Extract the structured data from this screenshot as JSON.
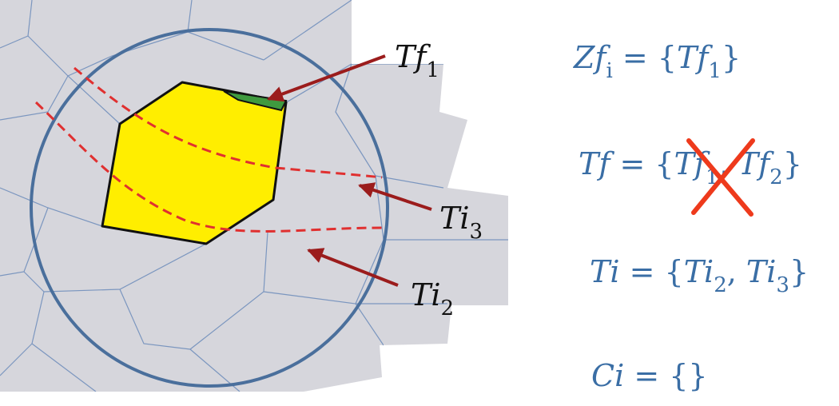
{
  "diagram": {
    "labels": {
      "tf1": {
        "base": "Tf",
        "sub": "1"
      },
      "ti3": {
        "base": "Ti",
        "sub": "3"
      },
      "ti2": {
        "base": "Ti",
        "sub": "2"
      }
    },
    "equations": {
      "zf": {
        "lhs": "Zf",
        "lhs_sub": "i",
        "op": " = {",
        "t1": "Tf",
        "t1_sub": "1",
        "close": "}"
      },
      "tf": {
        "lhs": "Tf",
        "op": " = {",
        "crossed": "Tf",
        "crossed_sub": "1",
        "sep": ", ",
        "t2": "Tf",
        "t2_sub": "2",
        "close": "}"
      },
      "ti": {
        "lhs": "Ti",
        "op": " = {",
        "t1": "Ti",
        "t1_sub": "2",
        "sep": ", ",
        "t2": "Ti",
        "t2_sub": "3",
        "close": "}"
      },
      "ci": {
        "lhs": "Ci",
        "op": " = {}"
      }
    },
    "colors": {
      "cell_fill": "#d6d6dc",
      "cell_stroke": "#7b96bf",
      "circle": "#4a6f9c",
      "selected_fill": "#ffee00",
      "frontier_fill": "#3f9a3f",
      "arrow": "#9b1c1c",
      "dashed": "#e03030",
      "equation_text": "#3a6ea5",
      "cross": "#ee3a1c",
      "label_text": "#111111"
    }
  }
}
